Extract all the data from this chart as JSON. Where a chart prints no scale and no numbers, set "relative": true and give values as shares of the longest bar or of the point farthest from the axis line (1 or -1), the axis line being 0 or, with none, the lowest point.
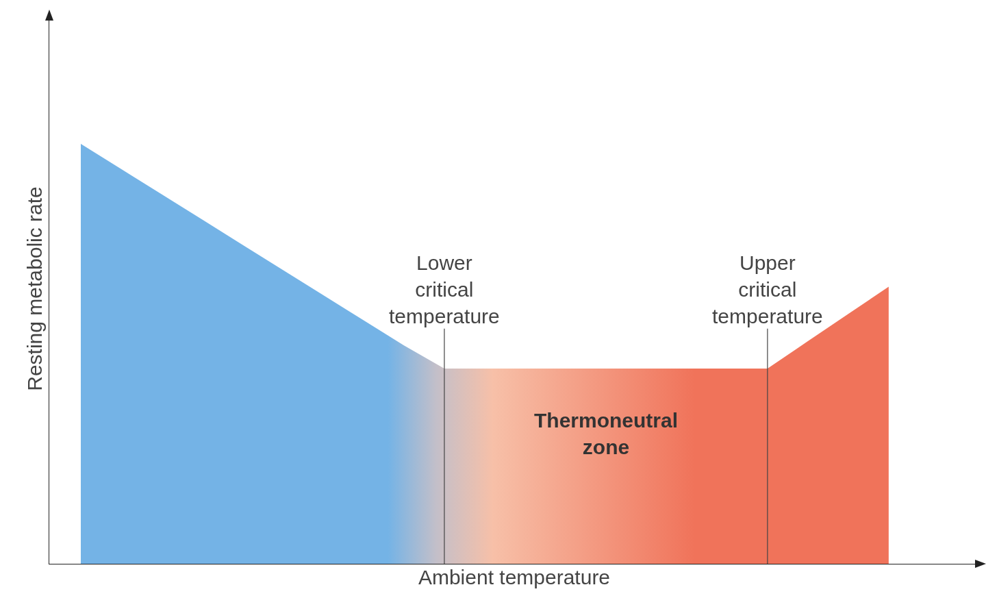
{
  "chart_data": {
    "type": "area",
    "relative": true,
    "xlabel": "Ambient temperature",
    "ylabel": "Resting metabolic rate",
    "categories": [
      null,
      null,
      null,
      null,
      null,
      null,
      null,
      null,
      null,
      null,
      null,
      null,
      null,
      null,
      null,
      null,
      null,
      null,
      null,
      null,
      null
    ],
    "series": [
      {
        "color": "#74b3e6",
        "values": [
          1,
          0.94,
          0.88,
          0.82,
          0.76,
          0.7,
          0.64,
          0.58,
          0.52,
          0.465,
          0.465,
          0.465,
          0.465,
          0.465,
          0.465,
          0.465,
          0.465,
          0.465,
          0.53,
          0.595,
          0.66
        ]
      }
    ],
    "annotations": [
      "Lower\ncritical\ntemperature",
      "Upper\ncritical\ntemperature",
      "Thermoneutral\nzone"
    ],
    "grid": false
  }
}
